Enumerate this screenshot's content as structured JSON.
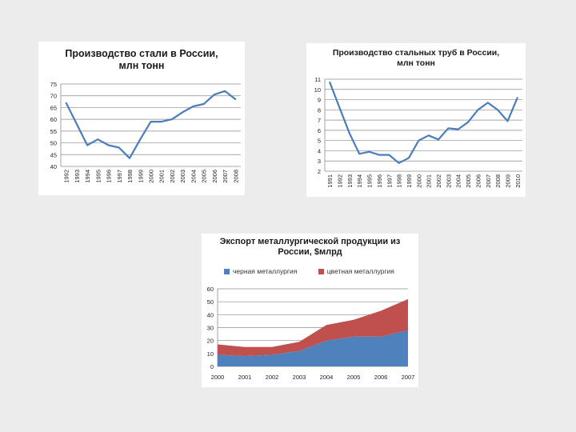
{
  "chart_data": [
    {
      "type": "line",
      "title": "Производство стали в России, млн тонн",
      "title_lines": [
        "Производство стали в России,",
        "млн тонн"
      ],
      "categories": [
        "1992",
        "1993",
        "1994",
        "1995",
        "1996",
        "1997",
        "1998",
        "1999",
        "2000",
        "2001",
        "2002",
        "2003",
        "2004",
        "2005",
        "2006",
        "2007",
        "2008"
      ],
      "values": [
        67,
        58,
        49,
        51.5,
        49,
        48,
        43.5,
        51.5,
        59,
        59,
        60,
        63,
        65.5,
        66.5,
        70.5,
        72,
        68.5
      ],
      "ylim": [
        40,
        75
      ],
      "yticks": [
        40,
        45,
        50,
        55,
        60,
        65,
        70,
        75
      ],
      "ytick_labels": [
        "40",
        "45",
        "50",
        "55",
        "60",
        "65",
        "70",
        "75"
      ],
      "color": "#4a7ebb"
    },
    {
      "type": "line",
      "title": "Производство стальных труб в России, млн тонн",
      "title_lines": [
        "Производство стальных труб в России,",
        "млн тонн"
      ],
      "categories": [
        "1991",
        "1992",
        "1993",
        "1994",
        "1995",
        "1996",
        "1997",
        "1998",
        "1999",
        "2000",
        "2001",
        "2002",
        "2003",
        "2004",
        "2005",
        "2006",
        "2007",
        "2008",
        "2009",
        "2010"
      ],
      "values": [
        10.7,
        8.2,
        5.7,
        3.7,
        3.9,
        3.6,
        3.6,
        2.8,
        3.3,
        5.0,
        5.5,
        5.1,
        6.2,
        6.1,
        6.8,
        8.0,
        8.7,
        8.0,
        6.9,
        9.2
      ],
      "ylim": [
        2,
        11
      ],
      "yticks": [
        2,
        3,
        4,
        5,
        6,
        7,
        8,
        9,
        10,
        11
      ],
      "ytick_labels": [
        "2",
        "3",
        "4",
        "5",
        "6",
        "7",
        "8",
        "9",
        "10",
        "11"
      ],
      "color": "#4a7ebb"
    },
    {
      "type": "area",
      "stacked": true,
      "title": "Экспорт металлургической продукции из России, $млрд",
      "title_lines": [
        "Экспорт металлургической продукции из",
        "России, $млрд"
      ],
      "categories": [
        "2000",
        "2001",
        "2002",
        "2003",
        "2004",
        "2005",
        "2006",
        "2007"
      ],
      "series": [
        {
          "name": "черная металлургия",
          "values": [
            9,
            8,
            9,
            12,
            20,
            23,
            23,
            28
          ],
          "color": "#4f81bd"
        },
        {
          "name": "цветная металлургия",
          "values": [
            8,
            7,
            6,
            7,
            12,
            13,
            20,
            24
          ],
          "color": "#c0504d"
        }
      ],
      "ylim": [
        0,
        60
      ],
      "yticks": [
        0,
        10,
        20,
        30,
        40,
        50,
        60
      ],
      "ytick_labels": [
        "0",
        "10",
        "20",
        "30",
        "40",
        "50",
        "60"
      ]
    }
  ]
}
